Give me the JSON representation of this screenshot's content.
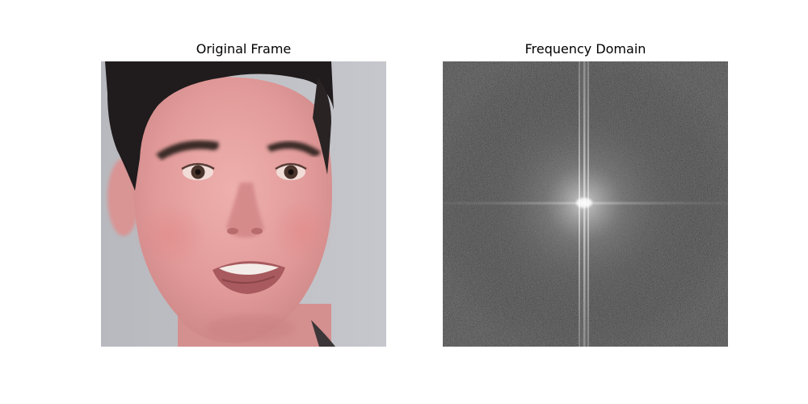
{
  "figure": {
    "panels": [
      {
        "title": "Original Frame",
        "content": "face-photo"
      },
      {
        "title": "Frequency Domain",
        "content": "fft-magnitude-spectrum"
      }
    ]
  },
  "colors": {
    "background_wall": "#bfc1c6",
    "skin": "#e7a3a3",
    "skin_shadow": "#c98484",
    "hair": "#1f1b1b",
    "spectrum_dark": "#151515",
    "spectrum_bright": "#e8e8e8"
  }
}
